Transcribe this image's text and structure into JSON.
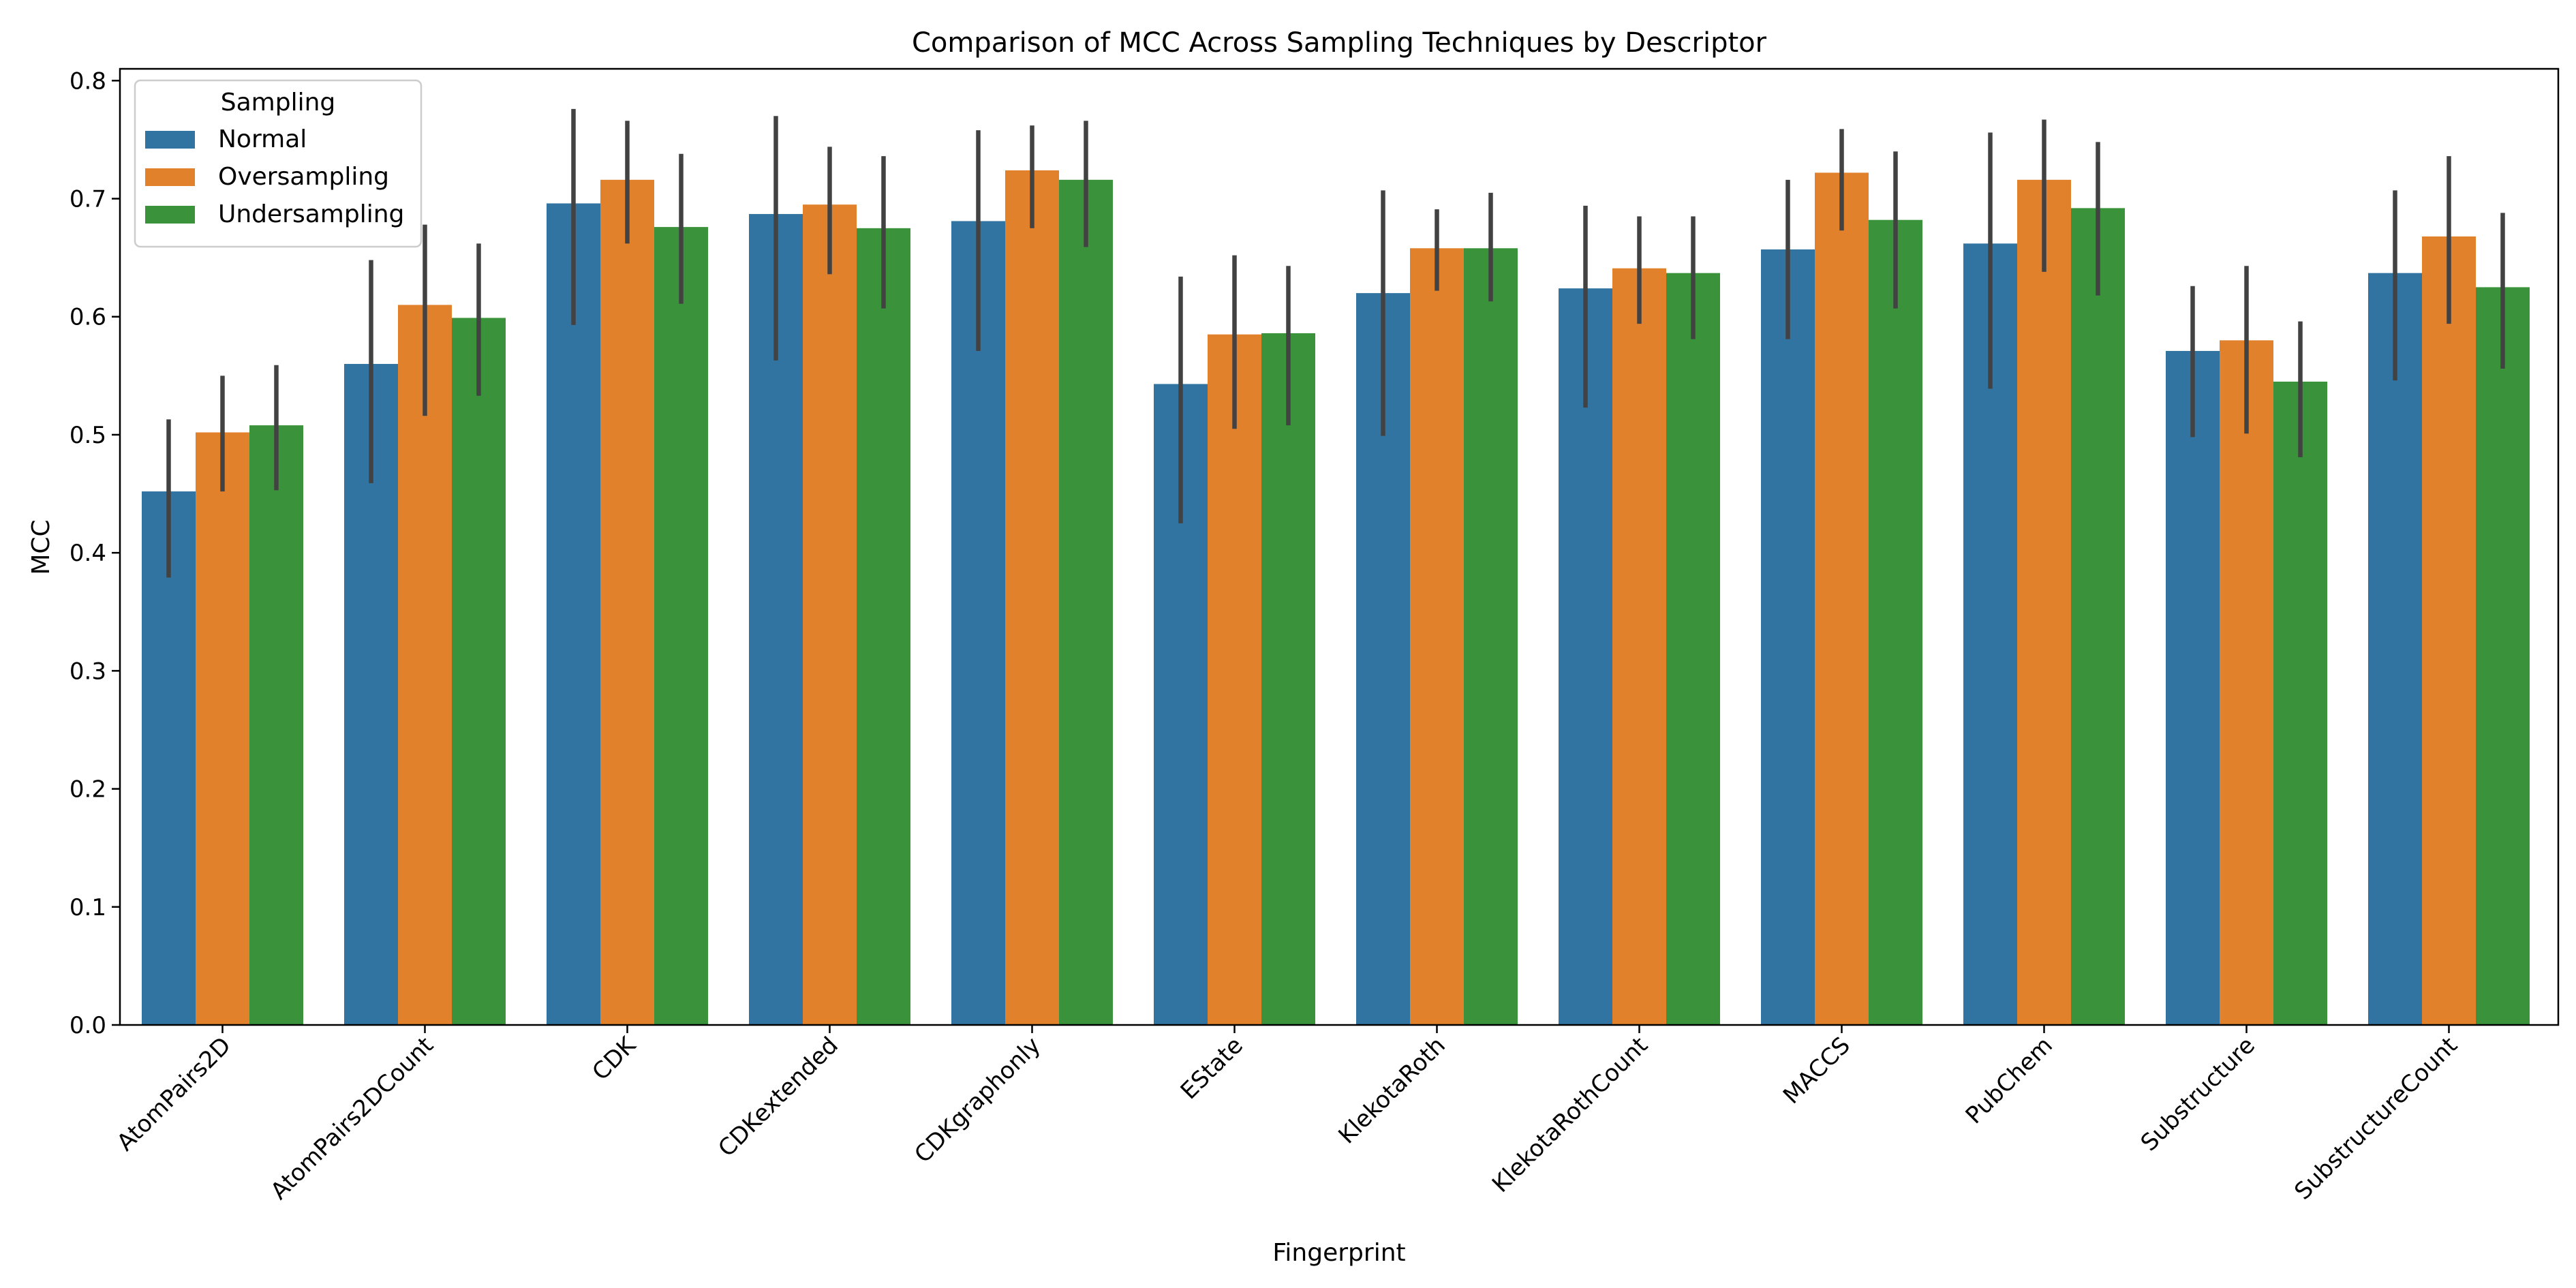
{
  "chart_data": {
    "type": "bar",
    "title": "Comparison of MCC Across Sampling Techniques by Descriptor",
    "xlabel": "Fingerprint",
    "ylabel": "MCC",
    "ylim": [
      0,
      0.81
    ],
    "yticks": [
      "0.0",
      "0.1",
      "0.2",
      "0.3",
      "0.4",
      "0.5",
      "0.6",
      "0.7",
      "0.8"
    ],
    "grid": false,
    "legend": {
      "title": "Sampling",
      "placement": "top-left"
    },
    "categories": [
      "AtomPairs2D",
      "AtomPairs2DCount",
      "CDK",
      "CDKextended",
      "CDKgraphonly",
      "EState",
      "KlekotaRoth",
      "KlekotaRothCount",
      "MACCS",
      "PubChem",
      "Substructure",
      "SubstructureCount"
    ],
    "series": [
      {
        "name": "Normal",
        "color": "#3274a1",
        "values": [
          0.452,
          0.56,
          0.696,
          0.687,
          0.681,
          0.543,
          0.62,
          0.624,
          0.657,
          0.662,
          0.571,
          0.637
        ],
        "err_low": [
          0.379,
          0.459,
          0.593,
          0.563,
          0.571,
          0.425,
          0.499,
          0.523,
          0.581,
          0.539,
          0.498,
          0.546
        ],
        "err_high": [
          0.513,
          0.648,
          0.776,
          0.77,
          0.758,
          0.634,
          0.707,
          0.694,
          0.716,
          0.756,
          0.626,
          0.707
        ]
      },
      {
        "name": "Oversampling",
        "color": "#e1812c",
        "values": [
          0.502,
          0.61,
          0.716,
          0.695,
          0.724,
          0.585,
          0.658,
          0.641,
          0.722,
          0.716,
          0.58,
          0.668
        ],
        "err_low": [
          0.452,
          0.516,
          0.662,
          0.636,
          0.675,
          0.505,
          0.622,
          0.594,
          0.673,
          0.638,
          0.501,
          0.594
        ],
        "err_high": [
          0.55,
          0.678,
          0.766,
          0.744,
          0.762,
          0.652,
          0.691,
          0.685,
          0.759,
          0.767,
          0.643,
          0.736
        ]
      },
      {
        "name": "Undersampling",
        "color": "#3a923a",
        "values": [
          0.508,
          0.599,
          0.676,
          0.675,
          0.716,
          0.586,
          0.658,
          0.637,
          0.682,
          0.692,
          0.545,
          0.625
        ],
        "err_low": [
          0.453,
          0.533,
          0.611,
          0.607,
          0.659,
          0.508,
          0.613,
          0.581,
          0.607,
          0.618,
          0.481,
          0.556
        ],
        "err_high": [
          0.559,
          0.662,
          0.738,
          0.736,
          0.766,
          0.643,
          0.705,
          0.685,
          0.74,
          0.748,
          0.596,
          0.688
        ]
      }
    ]
  }
}
